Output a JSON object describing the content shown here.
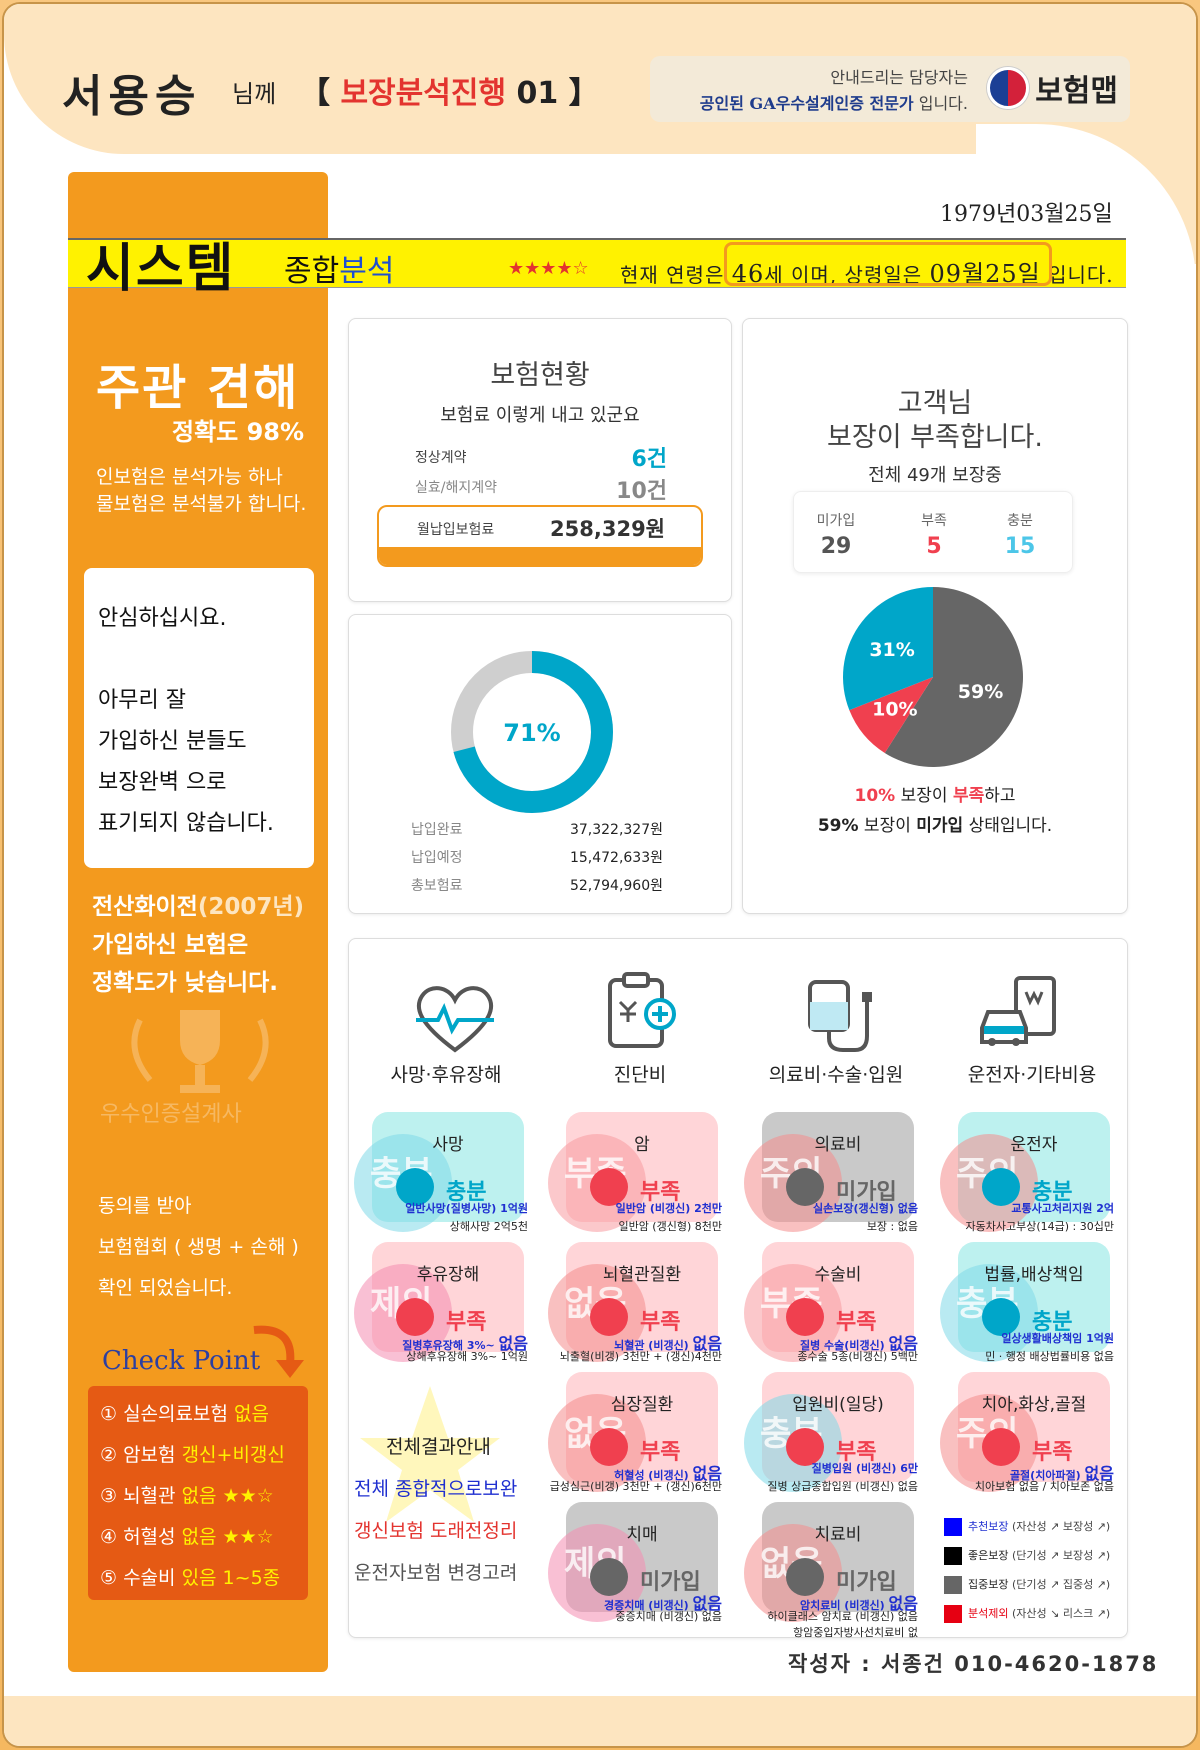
{
  "header": {
    "name": "서용승",
    "honorific": "님께",
    "tag_open": "【 ",
    "tag": "보장분석진행",
    "tag_num": " 01 】",
    "agent_line1": "안내드리는 담당자는",
    "agent_line2_bold": "공인된 GA우수설계인증 전문가",
    "agent_line2_rest": " 입니다.",
    "brand": "보험맵"
  },
  "birth": "1979년03월25일",
  "system": {
    "title": "시스템",
    "sub1": "종합",
    "sub2": "분석",
    "stars": "★★★★☆",
    "age_pre": "현재 연령은 ",
    "age": "46",
    "age_mid": "세 이며, 상령일은 ",
    "age_date": "09월25일",
    "age_post": " 입니다."
  },
  "left": {
    "opinion": "주관 견해",
    "accuracy": "정확도 98%",
    "note1": "인보험은 분석가능 하나",
    "note2": "물보험은 분석불가 합니다.",
    "card": [
      "안심하십시요.",
      "",
      "아무리 잘",
      "가입하신 분들도",
      "보장완벽 으로",
      "표기되지 않습니다."
    ],
    "warn1_a": "전산화이전",
    "warn1_b": "(2007년)",
    "warn2": "가입하신 보험은",
    "warn3": "정확도가 낮습니다.",
    "watermark": "우수인증설계사",
    "agree": [
      "동의를 받아",
      "보험협회 ( 생명 + 손해 )",
      "확인 되었습니다."
    ],
    "checkpoint": "Check Point",
    "cp": [
      {
        "a": "① 실손의료보험 ",
        "b": "없음"
      },
      {
        "a": "② 암보험 ",
        "b": "갱신+비갱신"
      },
      {
        "a": "③ 뇌혈관 ",
        "b": "없음 ★★☆"
      },
      {
        "a": "④ 허혈성 ",
        "b": "없음 ★★☆"
      },
      {
        "a": "⑤ 수술비 ",
        "b": "있음 1~5종"
      }
    ]
  },
  "status_card": {
    "title": "보험현황",
    "sub": "보험료 이렇게 내고 있군요",
    "normal_label": "정상계약",
    "normal_value": "6건",
    "lapsed_label": "실효/해지계약",
    "lapsed_value": "10건",
    "monthly_label": "월납입보험료",
    "monthly_value": "258,329원"
  },
  "coverage_card": {
    "t1": "고객님",
    "t2": "보장이 부족합니다.",
    "sub": "전체 49개 보장중",
    "none_label": "미가입",
    "none_value": "29",
    "lack_label": "부족",
    "lack_value": "5",
    "enough_label": "충분",
    "enough_value": "15",
    "note1_a": "10%",
    "note1_b": " 보장이 ",
    "note1_c": "부족",
    "note1_d": "하고",
    "note2_a": "59%",
    "note2_b": " 보장이 ",
    "note2_c": "미가입",
    "note2_d": " 상태입니다."
  },
  "colors": {
    "blue": "#00a6c9",
    "gray": "#666666",
    "red": "#f0404f",
    "orange": "#f39a1e"
  },
  "chart_data": [
    {
      "type": "pie",
      "title": "",
      "values": [
        59,
        10,
        31
      ],
      "labels": [
        "59%",
        "10%",
        "31%"
      ],
      "colors": [
        "#666666",
        "#f0404f",
        "#00a6c9"
      ]
    },
    {
      "type": "pie",
      "title": "",
      "values": [
        71,
        29
      ],
      "labels": [
        "71%",
        ""
      ],
      "colors": [
        "#00a6c9",
        "#cfcfcf"
      ]
    }
  ],
  "payment": {
    "done_label": "납입완료",
    "done_value": "37,322,327원",
    "plan_label": "납입예정",
    "plan_value": "15,472,633원",
    "total_label": "총보험료",
    "total_value": "52,794,960원",
    "percent": "71%"
  },
  "categories": [
    "사망·후유장해",
    "진단비",
    "의료비·수술·입원",
    "운전자·기타비용"
  ],
  "tiles": [
    {
      "title": "사망",
      "stamp": "충분",
      "status": "충분",
      "d1": "일반사망(질병사망) 1억원",
      "d2": "상해사망 2억5천"
    },
    {
      "title": "암",
      "stamp": "부족",
      "status": "부족",
      "d1": "일반암 (비갱신) 2천만",
      "d2": "일반암 (갱신형) 8천만"
    },
    {
      "title": "의료비",
      "stamp": "주의",
      "status": "미가입",
      "d1": "실손보장(갱신형) 없음",
      "d2": "보장 : 없음"
    },
    {
      "title": "운전자",
      "stamp": "주의",
      "status": "충분",
      "d1": "교통사고처리지원 2억",
      "d2": "자동차사고부상(14급) : 30십만"
    },
    {
      "title": "후유장해",
      "stamp": "제외",
      "status": "부족",
      "d1": "질병후유장해 3%~",
      "d1big": "없음",
      "d2": "상해후유장해 3%~ 1억원"
    },
    {
      "title": "뇌혈관질환",
      "stamp": "없음",
      "status": "부족",
      "d1": "뇌혈관 (비갱신)",
      "d1big": "없음",
      "d2": "뇌출혈(비갱) 3천만 + (갱신)4천만"
    },
    {
      "title": "수술비",
      "stamp": "부족",
      "status": "부족",
      "d1": "질병 수술(비갱신)",
      "d1big": "없음",
      "d2": "종수술 5종(비갱신) 5백만"
    },
    {
      "title": "법률,배상책임",
      "stamp": "충분",
      "status": "충분",
      "d1": "일상생활배상책임 1억원",
      "d2": "민 · 행정 배상법률비용 없음"
    },
    {
      "title": "심장질환",
      "stamp": "없음",
      "status": "부족",
      "d1": "허혈성 (비갱신)",
      "d1big": "없음",
      "d2": "급성심근(비갱) 3천만 + (갱신)6천만"
    },
    {
      "title": "입원비(일당)",
      "stamp": "충분",
      "status": "부족",
      "d1": "질병입원 (비갱신) 6만",
      "d2": "질병 상급종합입원 (비갱신) 없음"
    },
    {
      "title": "치아,화상,골절",
      "stamp": "주의",
      "status": "부족",
      "d1": "골절(치아파절)",
      "d1big": "없음",
      "d2": "치아보험 없음 / 치아보존 없음"
    },
    {
      "title": "치매",
      "stamp": "제외",
      "status": "미가입",
      "d1": "경증치매 (비갱신)",
      "d1big": "없음",
      "d2": "중증치매 (비갱신) 없음"
    },
    {
      "title": "치료비",
      "stamp": "없음",
      "status": "미가입",
      "d1": "암치료비 (비갱신)",
      "d1big": "없음",
      "d2": "하이클래스 암치료 (비갱신) 없음",
      "d3": "항암중입자방사선치료비 없"
    }
  ],
  "summary": {
    "title": "전체결과안내",
    "l1": "전체 종합적으로보완",
    "l2": "갱신보험 도래전정리",
    "l3": "운전자보험 변경고려"
  },
  "legend": [
    {
      "name": "추천보장",
      "desc": " (자산성 ↗ 보장성 ↗)",
      "color": "#0000ff"
    },
    {
      "name": "좋은보장",
      "desc": " (단기성 ↗ 보장성 ↗)",
      "color": "#000000"
    },
    {
      "name": "집중보장",
      "desc": " (단기성 ↗ 집중성 ↗)",
      "color": "#666666"
    },
    {
      "name": "분석제외",
      "desc": " (자산성 ↘ 리스크 ↗)",
      "color": "#e60012"
    }
  ],
  "writer": "작성자 : 서종건 010-4620-1878"
}
